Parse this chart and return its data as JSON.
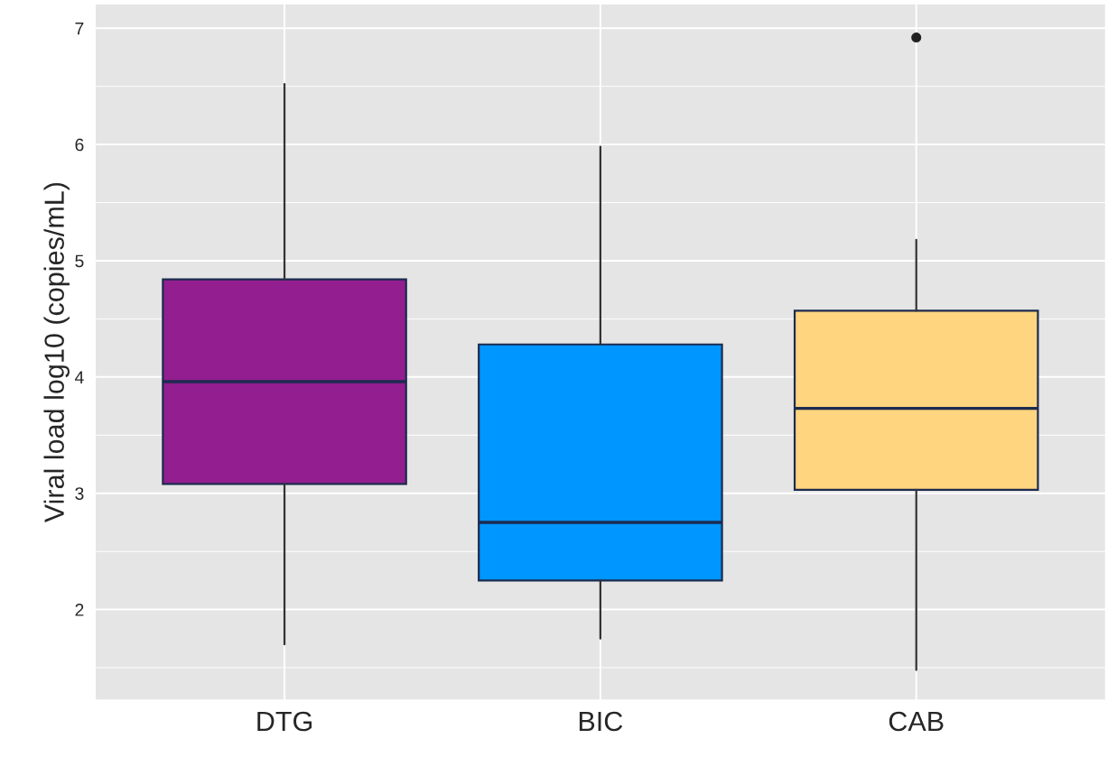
{
  "chart_data": {
    "type": "box",
    "ylabel": "Viral load log10 (copies/mL)",
    "categories": [
      "DTG",
      "BIC",
      "CAB"
    ],
    "colors": [
      "#931e8f",
      "#0096ff",
      "#ffd57f"
    ],
    "boxes": [
      {
        "low": 1.7,
        "q1": 3.08,
        "median": 3.96,
        "q3": 4.84,
        "high": 6.52
      },
      {
        "low": 1.75,
        "q1": 2.25,
        "median": 2.75,
        "q3": 4.28,
        "high": 5.98
      },
      {
        "low": 1.48,
        "q1": 3.03,
        "median": 3.73,
        "q3": 4.57,
        "high": 5.18,
        "outliers": [
          6.92
        ]
      }
    ],
    "ylim": [
      1.22,
      7.21
    ],
    "yticks": [
      2,
      3,
      4,
      5,
      6,
      7
    ],
    "grid": true
  }
}
